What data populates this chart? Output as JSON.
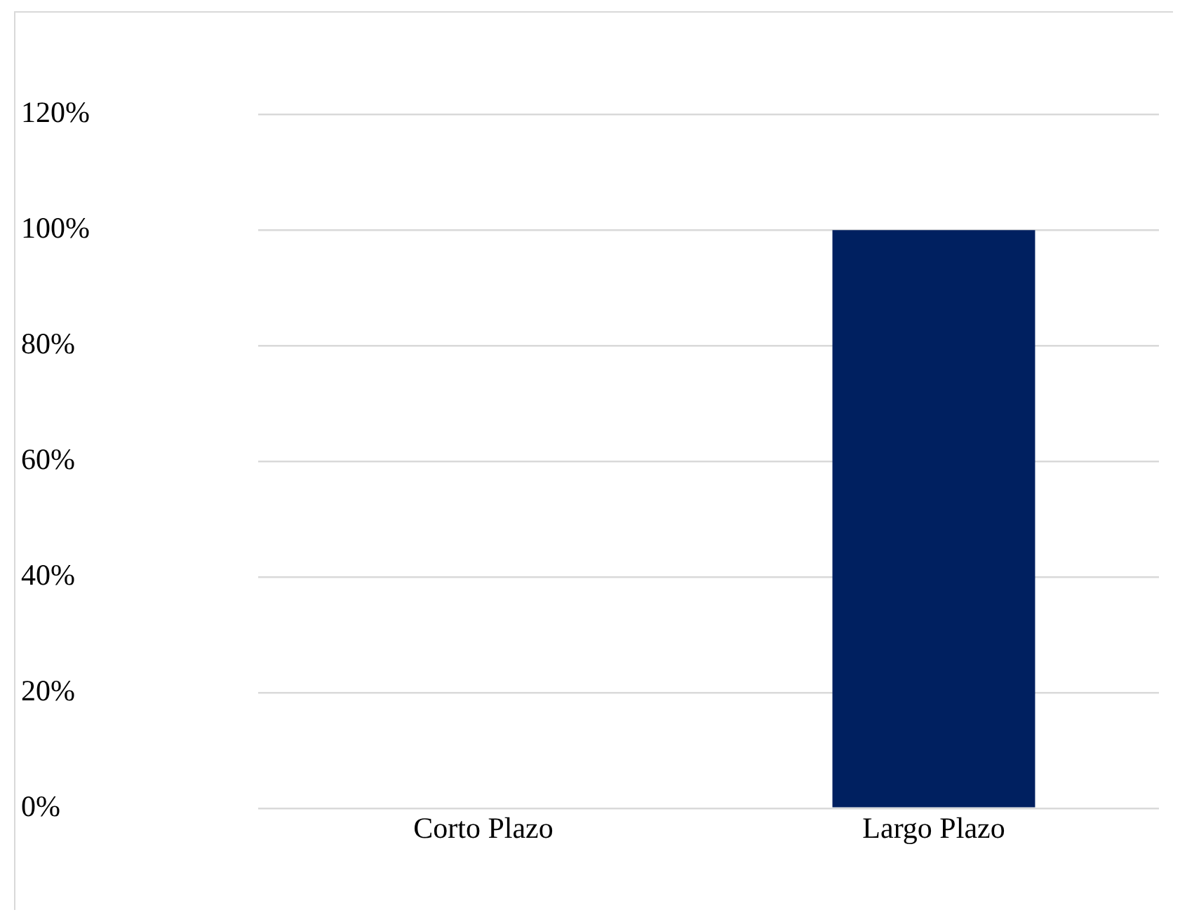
{
  "chart_data": {
    "type": "bar",
    "categories": [
      "Corto Plazo",
      "Largo Plazo"
    ],
    "values": [
      0,
      100
    ],
    "color": "#002060",
    "ylim": [
      0,
      120
    ],
    "yticks": [
      {
        "value": 0,
        "label": "0%"
      },
      {
        "value": 20,
        "label": "20%"
      },
      {
        "value": 40,
        "label": "40%"
      },
      {
        "value": 60,
        "label": "60%"
      },
      {
        "value": 80,
        "label": "80%"
      },
      {
        "value": 100,
        "label": "100%"
      },
      {
        "value": 120,
        "label": "120%"
      }
    ],
    "grid": "y"
  }
}
